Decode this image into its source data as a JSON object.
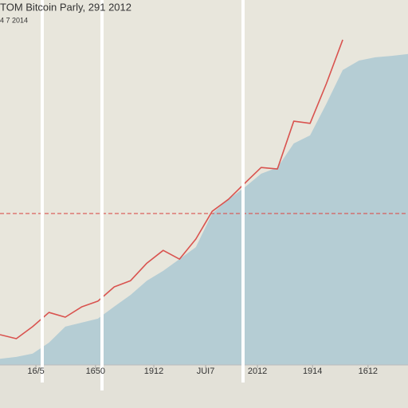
{
  "chart_data": {
    "type": "line",
    "title": "TOM Bitcoin Parly, 291 2012",
    "subtitle": "4 7 2014",
    "x": [
      0,
      4,
      8,
      12,
      16,
      20,
      24,
      28,
      32,
      36,
      40,
      44,
      48,
      52,
      56,
      60,
      64,
      68,
      72,
      76,
      80,
      84,
      88,
      92,
      96,
      100
    ],
    "xlim": [
      0,
      100
    ],
    "xticks": [
      {
        "value": 8.8,
        "label": "16/5"
      },
      {
        "value": 23.4,
        "label": "1650"
      },
      {
        "value": 37.7,
        "label": "1912"
      },
      {
        "value": 50.4,
        "label": "JUI7"
      },
      {
        "value": 63.1,
        "label": "2012"
      },
      {
        "value": 76.6,
        "label": "1914"
      },
      {
        "value": 90.2,
        "label": "1612"
      }
    ],
    "ylim": [
      0,
      100
    ],
    "reference_line": 41.5,
    "series": [
      {
        "color": "#b5cdd4",
        "fill": true,
        "values": [
          1.7,
          2.2,
          3.1,
          6.1,
          10.5,
          11.6,
          12.7,
          16.0,
          19.2,
          23.1,
          25.8,
          29.0,
          32.3,
          41.5,
          45.4,
          48.7,
          52.4,
          54.1,
          60.7,
          62.9,
          71.6,
          80.8,
          83.4,
          84.3,
          84.7,
          85.2
        ]
      },
      {
        "color": "#d9534f",
        "fill": false,
        "values": [
          8.3,
          7.2,
          10.5,
          14.4,
          13.1,
          15.9,
          17.5,
          21.4,
          23.1,
          27.9,
          31.4,
          29.0,
          34.5,
          42.1,
          45.4,
          49.8,
          54.1,
          53.7,
          66.8,
          66.2,
          77.1,
          89.1,
          null,
          null,
          null,
          null
        ]
      }
    ]
  }
}
